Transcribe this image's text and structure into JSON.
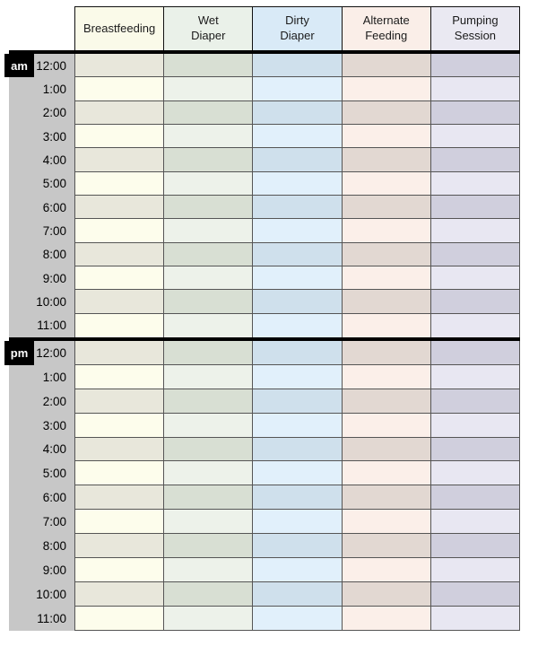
{
  "table": {
    "columns": [
      {
        "label": "Breastfeeding",
        "header_bg": "#fafae9",
        "row_light": "#fdfdec",
        "row_dark": "#e8e7db"
      },
      {
        "label": "Wet\nDiaper",
        "header_bg": "#eaf1e9",
        "row_light": "#edf2ea",
        "row_dark": "#d8dfd3"
      },
      {
        "label": "Dirty\nDiaper",
        "header_bg": "#d9eaf7",
        "row_light": "#e1f0fb",
        "row_dark": "#cfe0ec"
      },
      {
        "label": "Alternate\nFeeding",
        "header_bg": "#faeee8",
        "row_light": "#fbefe9",
        "row_dark": "#e2d8d2"
      },
      {
        "label": "Pumping\nSession",
        "header_bg": "#eae9f2",
        "row_light": "#e8e7f2",
        "row_dark": "#d0cfdd"
      }
    ],
    "sections": [
      {
        "badge": "am",
        "times": [
          "12:00",
          "1:00",
          "2:00",
          "3:00",
          "4:00",
          "5:00",
          "6:00",
          "7:00",
          "8:00",
          "9:00",
          "10:00",
          "11:00"
        ]
      },
      {
        "badge": "pm",
        "times": [
          "12:00",
          "1:00",
          "2:00",
          "3:00",
          "4:00",
          "5:00",
          "6:00",
          "7:00",
          "8:00",
          "9:00",
          "10:00",
          "11:00"
        ]
      }
    ],
    "colors": {
      "time_column_bg": "#c7c7c7",
      "badge_bg": "#000000",
      "badge_text": "#ffffff",
      "grid_border": "#555555",
      "header_border": "#111111",
      "section_divider": "#000000"
    }
  }
}
